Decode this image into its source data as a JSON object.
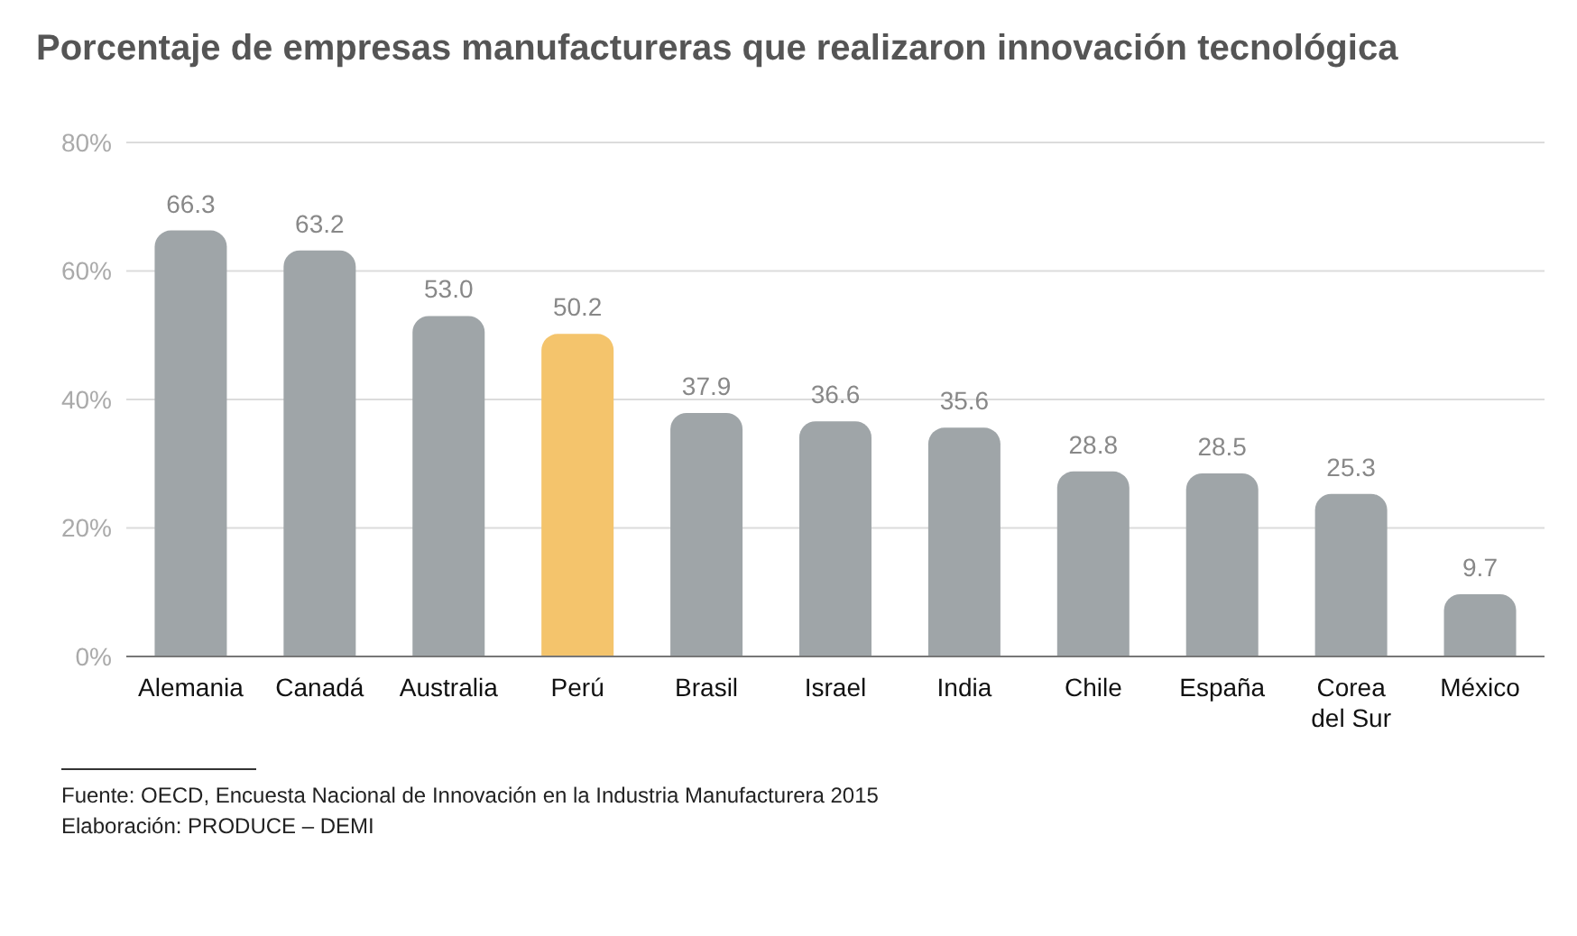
{
  "chart_data": {
    "type": "bar",
    "title": "Porcentaje de empresas manufactureras que realizaron innovación tecnológica",
    "categories": [
      "Alemania",
      "Canadá",
      "Australia",
      "Perú",
      "Brasil",
      "Israel",
      "India",
      "Chile",
      "España",
      "Corea del Sur",
      "México"
    ],
    "values": [
      66.3,
      63.2,
      53.0,
      50.2,
      37.9,
      36.6,
      35.6,
      28.8,
      28.5,
      25.3,
      9.7
    ],
    "value_labels": [
      "66.3",
      "63.2",
      "53.0",
      "50.2",
      "37.9",
      "36.6",
      "35.6",
      "28.8",
      "28.5",
      "25.3",
      "9.7"
    ],
    "colors": [
      "#9fa5a8",
      "#9fa5a8",
      "#9fa5a8",
      "#f4c46c",
      "#9fa5a8",
      "#9fa5a8",
      "#9fa5a8",
      "#9fa5a8",
      "#9fa5a8",
      "#9fa5a8",
      "#9fa5a8"
    ],
    "ylim": [
      0,
      80
    ],
    "yticks": [
      {
        "value": 0,
        "label": "0%"
      },
      {
        "value": 20,
        "label": "20%"
      },
      {
        "value": 40,
        "label": "40%"
      },
      {
        "value": 60,
        "label": "60%"
      },
      {
        "value": 80,
        "label": "80%"
      }
    ],
    "grid": "y",
    "annotations": [
      "Fuente: OECD, Encuesta Nacional de Innovación en la Industria Manufacturera 2015",
      "Elaboración: PRODUCE – DEMI"
    ]
  }
}
